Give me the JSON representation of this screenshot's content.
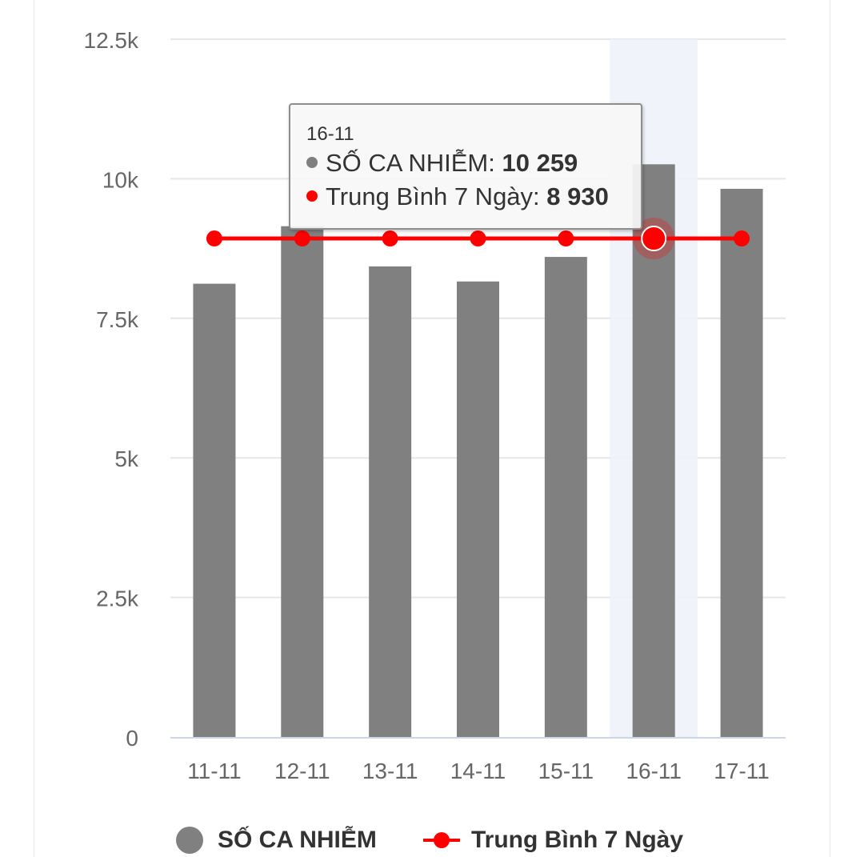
{
  "chart_data": {
    "type": "bar",
    "categories": [
      "11-11",
      "12-11",
      "13-11",
      "14-11",
      "15-11",
      "16-11",
      "17-11"
    ],
    "series": [
      {
        "name": "SỐ CA NHIỄM",
        "type": "bar",
        "color": "#808080",
        "values": [
          8120,
          9150,
          8430,
          8160,
          8600,
          10259,
          9820
        ]
      },
      {
        "name": "Trung Bình 7 Ngày",
        "type": "line",
        "color": "#ff0000",
        "values": [
          8930,
          8930,
          8930,
          8930,
          8930,
          8930,
          8930
        ]
      }
    ],
    "ylim": [
      0,
      12500
    ],
    "yticks": [
      0,
      2500,
      5000,
      7500,
      10000,
      12500
    ],
    "ytick_labels": [
      "0",
      "2.5k",
      "5k",
      "7.5k",
      "10k",
      "12.5k"
    ],
    "highlight_index": 5,
    "grid": true,
    "legend": "bottom"
  },
  "tooltip": {
    "date": "16-11",
    "rows": [
      {
        "label": "SỐ CA NHIỄM: ",
        "value": "10 259",
        "color": "#808080"
      },
      {
        "label": "Trung Bình 7 Ngày: ",
        "value": "8 930",
        "color": "#ff0000"
      }
    ]
  },
  "legend": {
    "bar_label": "SỐ CA NHIỄM",
    "line_label": "Trung Bình 7 Ngày"
  }
}
